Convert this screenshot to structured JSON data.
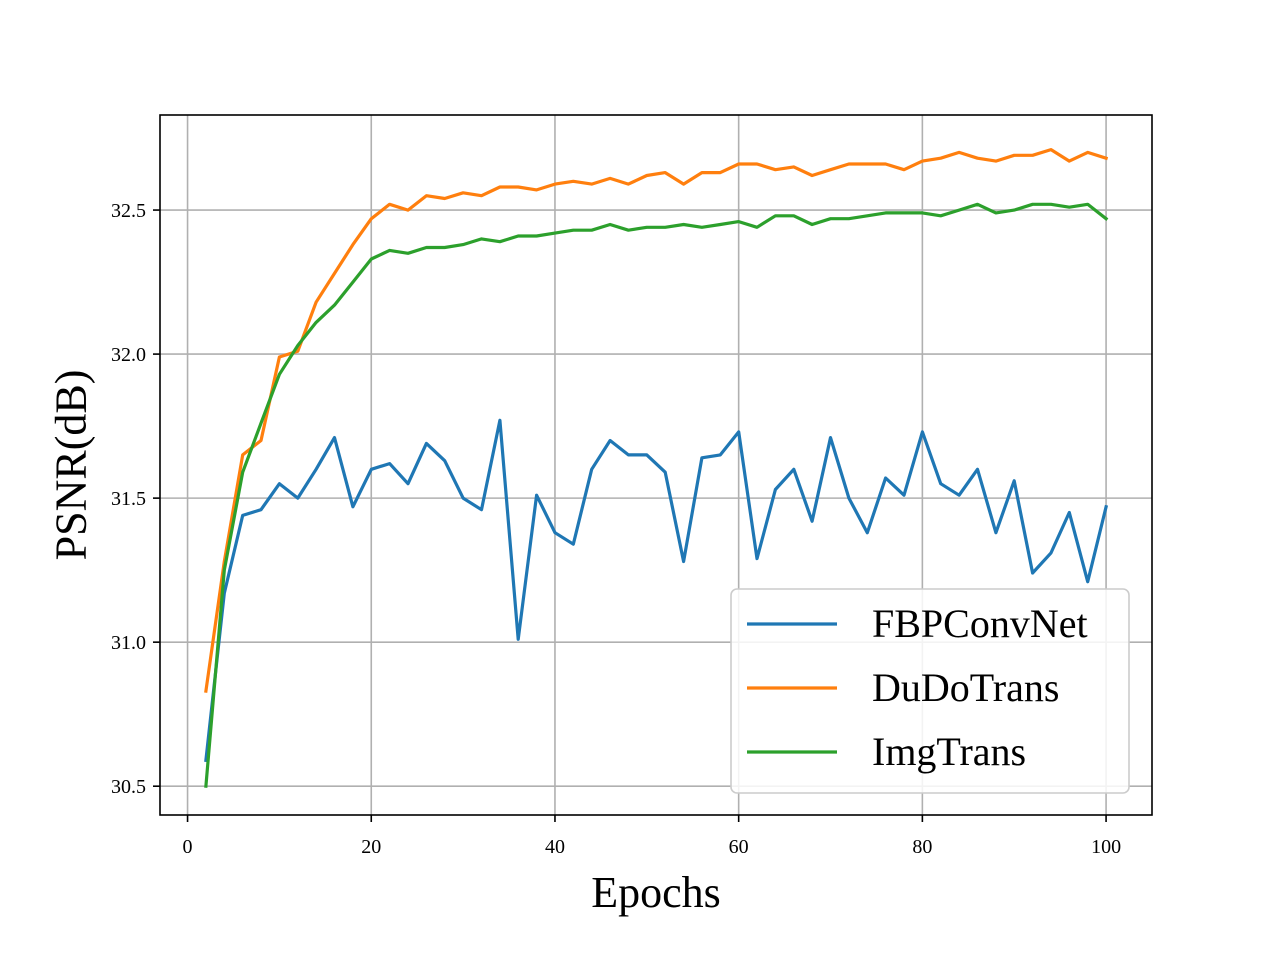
{
  "chart_data": {
    "type": "line",
    "xlabel": "Epochs",
    "ylabel": "PSNR(dB)",
    "xlim": [
      -3,
      105
    ],
    "ylim": [
      30.4,
      32.83
    ],
    "x_ticks": [
      0,
      20,
      40,
      60,
      80,
      100
    ],
    "y_ticks": [
      30.5,
      31.0,
      31.5,
      32.0,
      32.5
    ],
    "x_tick_labels": [
      "0",
      "20",
      "40",
      "60",
      "80",
      "100"
    ],
    "y_tick_labels": [
      "30.5",
      "31.0",
      "31.5",
      "32.0",
      "32.5"
    ],
    "grid": true,
    "legend_position": "lower-right",
    "x": [
      2,
      4,
      6,
      8,
      10,
      12,
      14,
      16,
      18,
      20,
      22,
      24,
      26,
      28,
      30,
      32,
      34,
      36,
      38,
      40,
      42,
      44,
      46,
      48,
      50,
      52,
      54,
      56,
      58,
      60,
      62,
      64,
      66,
      68,
      70,
      72,
      74,
      76,
      78,
      80,
      82,
      84,
      86,
      88,
      90,
      92,
      94,
      96,
      98,
      100
    ],
    "series": [
      {
        "name": "FBPConvNet",
        "color": "#1f77b4",
        "values": [
          30.59,
          31.17,
          31.44,
          31.46,
          31.55,
          31.5,
          31.6,
          31.71,
          31.47,
          31.6,
          31.62,
          31.55,
          31.69,
          31.63,
          31.5,
          31.46,
          31.77,
          31.01,
          31.51,
          31.38,
          31.34,
          31.6,
          31.7,
          31.65,
          31.65,
          31.59,
          31.28,
          31.64,
          31.65,
          31.73,
          31.29,
          31.53,
          31.6,
          31.42,
          31.71,
          31.5,
          31.38,
          31.57,
          31.51,
          31.73,
          31.55,
          31.51,
          31.6,
          31.38,
          31.56,
          31.24,
          31.31,
          31.45,
          31.21,
          31.47
        ]
      },
      {
        "name": "DuDoTrans",
        "color": "#ff7f0e",
        "values": [
          30.83,
          31.28,
          31.65,
          31.7,
          31.99,
          32.01,
          32.18,
          32.28,
          32.38,
          32.47,
          32.52,
          32.5,
          32.55,
          32.54,
          32.56,
          32.55,
          32.58,
          32.58,
          32.57,
          32.59,
          32.6,
          32.59,
          32.61,
          32.59,
          32.62,
          32.63,
          32.59,
          32.63,
          32.63,
          32.66,
          32.66,
          32.64,
          32.65,
          32.62,
          32.64,
          32.66,
          32.66,
          32.66,
          32.64,
          32.67,
          32.68,
          32.7,
          32.68,
          32.67,
          32.69,
          32.69,
          32.71,
          32.67,
          32.7,
          32.68
        ]
      },
      {
        "name": "ImgTrans",
        "color": "#2ca02c",
        "values": [
          30.5,
          31.25,
          31.59,
          31.76,
          31.93,
          32.03,
          32.11,
          32.17,
          32.25,
          32.33,
          32.36,
          32.35,
          32.37,
          32.37,
          32.38,
          32.4,
          32.39,
          32.41,
          32.41,
          32.42,
          32.43,
          32.43,
          32.45,
          32.43,
          32.44,
          32.44,
          32.45,
          32.44,
          32.45,
          32.46,
          32.44,
          32.48,
          32.48,
          32.45,
          32.47,
          32.47,
          32.48,
          32.49,
          32.49,
          32.49,
          32.48,
          32.5,
          32.52,
          32.49,
          32.5,
          32.52,
          32.52,
          32.51,
          32.52,
          32.47
        ]
      }
    ]
  }
}
